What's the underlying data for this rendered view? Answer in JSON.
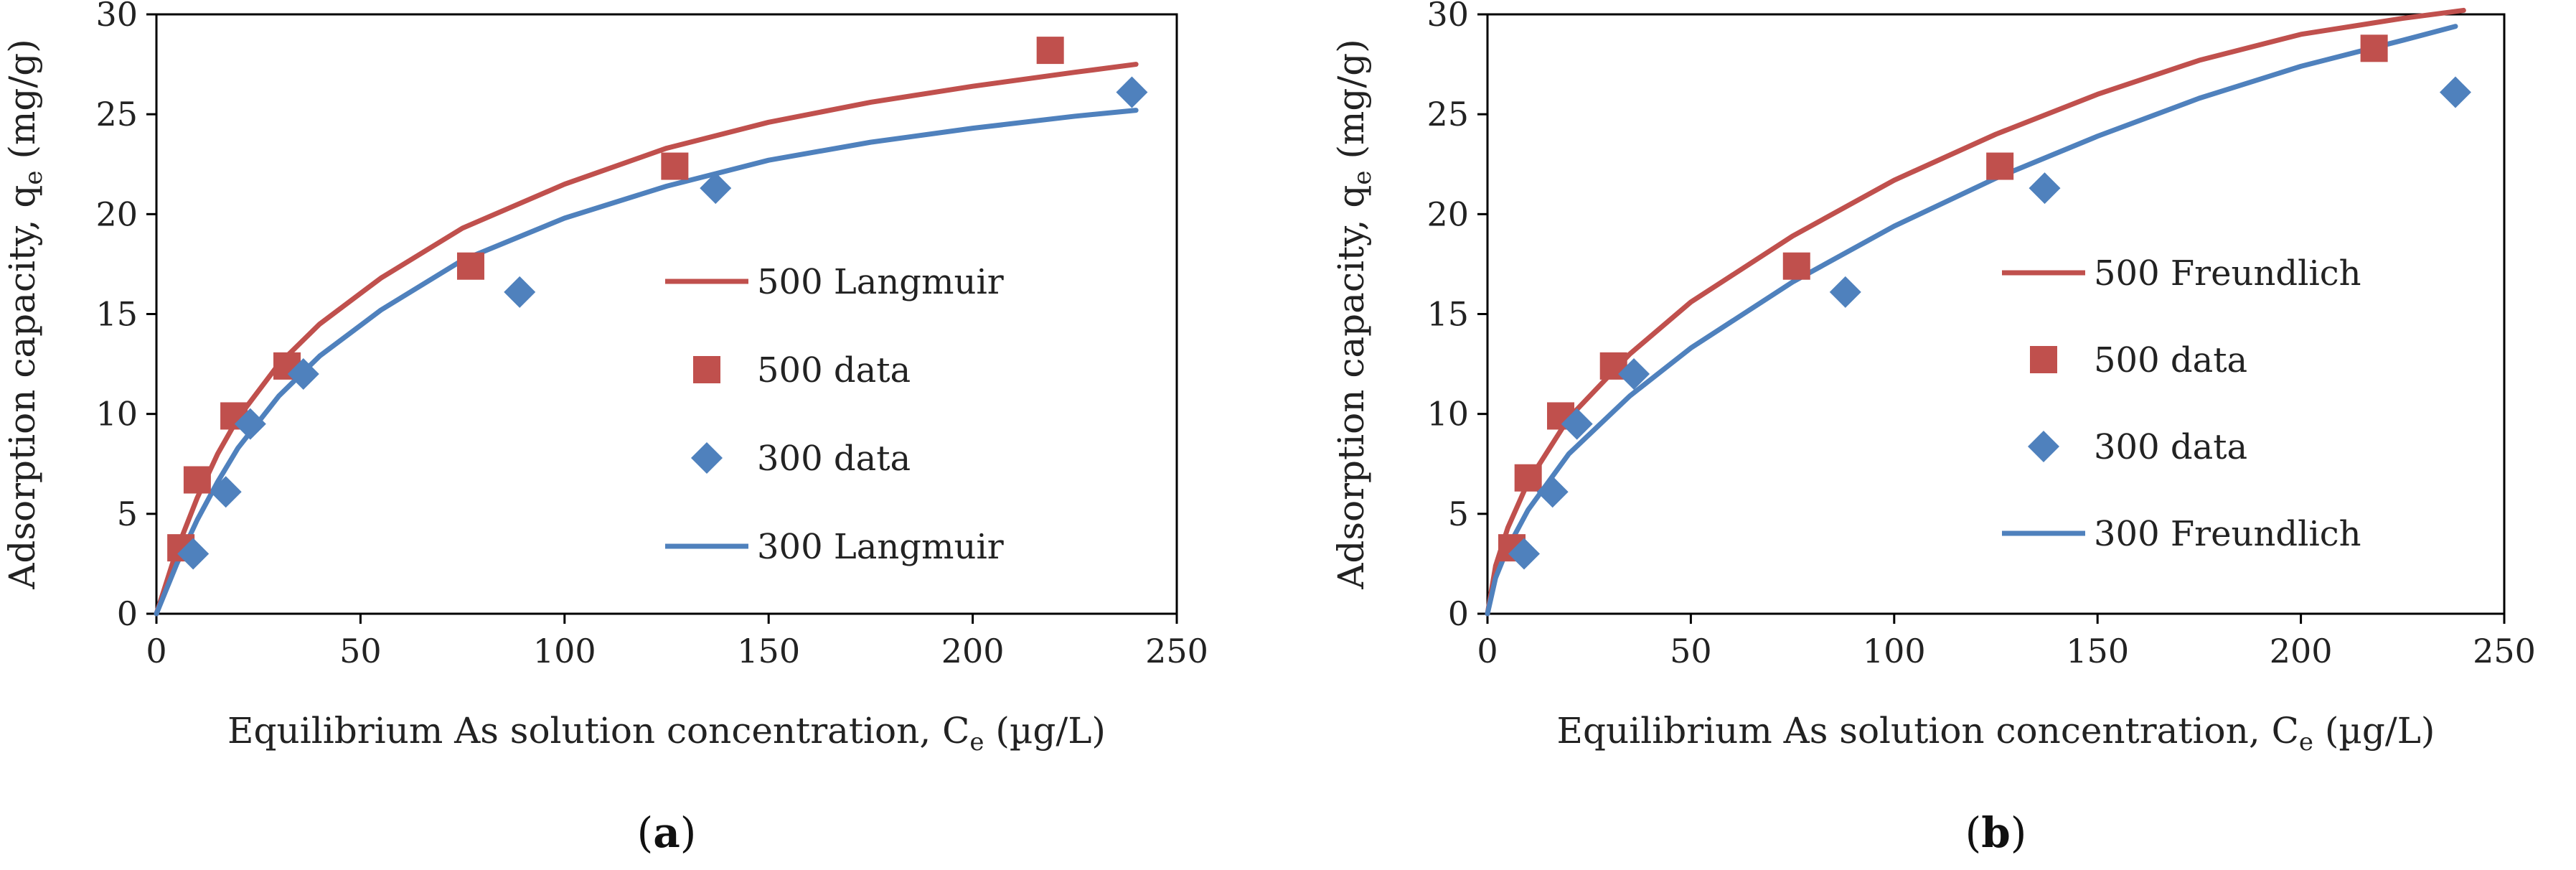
{
  "colors": {
    "series_500": "#c0504d",
    "series_300": "#4f81bd",
    "axis": "#000000"
  },
  "chart_data": [
    {
      "type": "scatter",
      "panel_label": "a",
      "xlabel_main": "Equilibrium As solution concentration, C",
      "xlabel_sub": "e",
      "xlabel_unit": " (µg/L)",
      "ylabel_main": "Adsorption capacity, q",
      "ylabel_sub": "e",
      "ylabel_unit": " (mg/g)",
      "xlim": [
        0,
        250
      ],
      "ylim": [
        0,
        30
      ],
      "xticks": [
        0,
        50,
        100,
        150,
        200,
        250
      ],
      "yticks": [
        0,
        5,
        10,
        15,
        20,
        25,
        30
      ],
      "grid": false,
      "legend_position": "right",
      "series": [
        {
          "name": "500 Langmuir",
          "kind": "line",
          "color": "#c0504d",
          "x": [
            0,
            5,
            10,
            15,
            20,
            30,
            40,
            55,
            75,
            100,
            125,
            150,
            175,
            200,
            225,
            240
          ],
          "y": [
            0,
            3.2,
            5.8,
            8.0,
            9.8,
            12.5,
            14.5,
            16.8,
            19.3,
            21.5,
            23.3,
            24.6,
            25.6,
            26.4,
            27.1,
            27.5
          ]
        },
        {
          "name": "500 data",
          "kind": "marker",
          "marker": "square",
          "color": "#c0504d",
          "x": [
            6,
            10,
            19,
            32,
            77,
            127,
            219
          ],
          "y": [
            3.3,
            6.7,
            9.9,
            12.4,
            17.4,
            22.4,
            28.2
          ]
        },
        {
          "name": "300 data",
          "kind": "marker",
          "marker": "diamond",
          "color": "#4f81bd",
          "x": [
            9,
            17,
            23,
            36,
            89,
            137,
            239
          ],
          "y": [
            3.0,
            6.1,
            9.5,
            12.0,
            16.1,
            21.3,
            26.1
          ]
        },
        {
          "name": "300 Langmuir",
          "kind": "line",
          "color": "#4f81bd",
          "x": [
            0,
            5,
            10,
            15,
            20,
            30,
            40,
            55,
            75,
            100,
            125,
            150,
            175,
            200,
            225,
            240
          ],
          "y": [
            0,
            2.5,
            4.7,
            6.6,
            8.3,
            10.9,
            12.9,
            15.2,
            17.7,
            19.8,
            21.4,
            22.7,
            23.6,
            24.3,
            24.9,
            25.2
          ]
        }
      ]
    },
    {
      "type": "scatter",
      "panel_label": "b",
      "xlabel_main": "Equilibrium As solution concentration, C",
      "xlabel_sub": "e",
      "xlabel_unit": " (µg/L)",
      "ylabel_main": "Adsorption capacity, q",
      "ylabel_sub": "e",
      "ylabel_unit": " (mg/g)",
      "xlim": [
        0,
        250
      ],
      "ylim": [
        0,
        30
      ],
      "xticks": [
        0,
        50,
        100,
        150,
        200,
        250
      ],
      "yticks": [
        0,
        5,
        10,
        15,
        20,
        25,
        30
      ],
      "grid": false,
      "legend_position": "right",
      "series": [
        {
          "name": "500 Freundlich",
          "kind": "line",
          "color": "#c0504d",
          "x": [
            0,
            2,
            5,
            10,
            20,
            35,
            50,
            75,
            100,
            125,
            150,
            175,
            200,
            225,
            240
          ],
          "y": [
            0,
            2.4,
            4.3,
            6.6,
            9.8,
            13.0,
            15.6,
            18.9,
            21.7,
            24.0,
            26.0,
            27.7,
            29.0,
            29.8,
            30.2
          ]
        },
        {
          "name": "500 data",
          "kind": "marker",
          "marker": "square",
          "color": "#c0504d",
          "x": [
            6,
            10,
            18,
            31,
            76,
            126,
            218
          ],
          "y": [
            3.3,
            6.8,
            9.9,
            12.4,
            17.4,
            22.4,
            28.3
          ]
        },
        {
          "name": "300 data",
          "kind": "marker",
          "marker": "diamond",
          "color": "#4f81bd",
          "x": [
            9,
            16,
            22,
            36,
            88,
            137,
            238
          ],
          "y": [
            3.0,
            6.1,
            9.5,
            12.0,
            16.1,
            21.3,
            26.1
          ]
        },
        {
          "name": "300 Freundlich",
          "kind": "line",
          "color": "#4f81bd",
          "x": [
            0,
            2,
            5,
            10,
            20,
            35,
            50,
            75,
            100,
            125,
            150,
            175,
            200,
            225,
            238
          ],
          "y": [
            0,
            1.8,
            3.3,
            5.2,
            8.0,
            10.9,
            13.3,
            16.6,
            19.4,
            21.8,
            23.9,
            25.8,
            27.4,
            28.7,
            29.4
          ]
        }
      ]
    }
  ]
}
